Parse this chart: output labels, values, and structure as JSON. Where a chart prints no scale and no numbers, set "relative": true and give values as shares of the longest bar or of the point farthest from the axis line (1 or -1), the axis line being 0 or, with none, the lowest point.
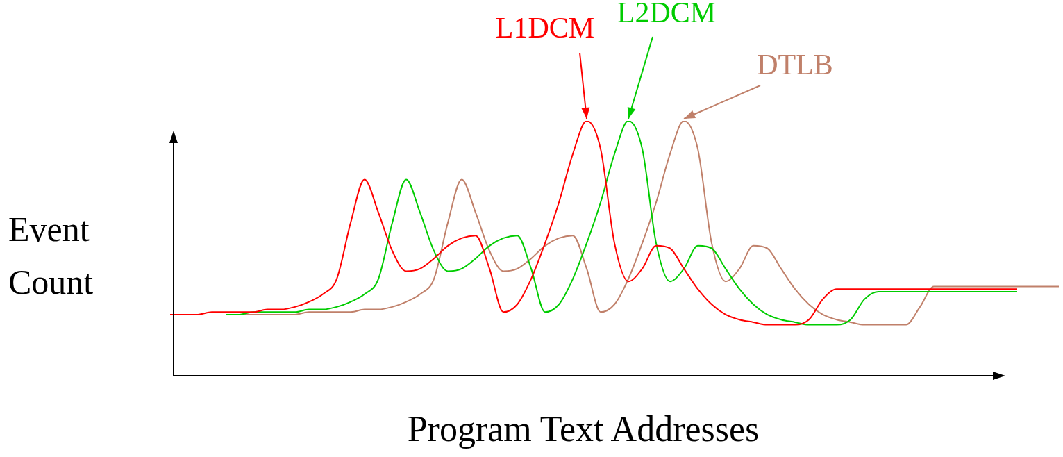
{
  "chart_data": {
    "type": "line",
    "relative": true,
    "xlabel": "Program Text Addresses",
    "ylabel": "Event Count",
    "legend": false,
    "marker": "none",
    "line_style": "solid",
    "categories": [
      null,
      null,
      null,
      null,
      null,
      null,
      null,
      null,
      null,
      null,
      null,
      null,
      null,
      null,
      null,
      null,
      null,
      null,
      null,
      null,
      null,
      null,
      null,
      null,
      null,
      null,
      null,
      null,
      null,
      null,
      null,
      null,
      null,
      null,
      null,
      null,
      null,
      null,
      null,
      null,
      null,
      null,
      null,
      null,
      null,
      null,
      null,
      null,
      null,
      null,
      null,
      null,
      null,
      null,
      null,
      null,
      null,
      null,
      null,
      null,
      null,
      null,
      null,
      null,
      null
    ],
    "series": [
      {
        "name": "L1DCM",
        "color": "#ff0000",
        "values": [
          0.24,
          0.24,
          0.24,
          0.25,
          0.25,
          0.25,
          0.25,
          0.26,
          0.26,
          0.27,
          0.29,
          0.32,
          0.38,
          0.6,
          0.77,
          0.64,
          0.49,
          0.41,
          0.42,
          0.46,
          0.51,
          0.54,
          0.55,
          0.42,
          0.25,
          0.28,
          0.38,
          0.52,
          0.68,
          0.87,
          1,
          0.89,
          0.52,
          0.37,
          0.42,
          0.51,
          0.5,
          0.42,
          0.34,
          0.28,
          0.24,
          0.22,
          0.21,
          0.2,
          0.2,
          0.2,
          0.22,
          0.3,
          0.34,
          0.34,
          0.34,
          0.34,
          0.34,
          0.34,
          0.34,
          0.34,
          0.34,
          0.34,
          0.34,
          0.34,
          0.34,
          0.34,
          null,
          null,
          null
        ]
      },
      {
        "name": "L2DCM",
        "color": "#00cc00",
        "values": [
          null,
          null,
          null,
          null,
          0.24,
          0.24,
          0.25,
          0.25,
          0.25,
          0.25,
          0.26,
          0.26,
          0.27,
          0.29,
          0.32,
          0.38,
          0.6,
          0.77,
          0.64,
          0.49,
          0.41,
          0.42,
          0.46,
          0.51,
          0.54,
          0.55,
          0.42,
          0.25,
          0.28,
          0.38,
          0.52,
          0.68,
          0.87,
          1,
          0.89,
          0.52,
          0.37,
          0.42,
          0.51,
          0.5,
          0.42,
          0.34,
          0.28,
          0.24,
          0.22,
          0.21,
          0.2,
          0.2,
          0.2,
          0.22,
          0.3,
          0.33,
          0.33,
          0.33,
          0.33,
          0.33,
          0.33,
          0.33,
          0.33,
          0.33,
          0.33,
          0.33,
          null,
          null,
          null
        ]
      },
      {
        "name": "DTLB",
        "color": "#c0806a",
        "values": [
          null,
          null,
          null,
          null,
          0.24,
          0.24,
          0.24,
          0.24,
          0.24,
          0.24,
          0.25,
          0.25,
          0.25,
          0.25,
          0.26,
          0.26,
          0.27,
          0.29,
          0.32,
          0.38,
          0.6,
          0.77,
          0.64,
          0.49,
          0.41,
          0.42,
          0.46,
          0.51,
          0.54,
          0.55,
          0.42,
          0.25,
          0.28,
          0.38,
          0.52,
          0.68,
          0.87,
          1,
          0.89,
          0.52,
          0.37,
          0.42,
          0.51,
          0.5,
          0.42,
          0.34,
          0.28,
          0.24,
          0.22,
          0.21,
          0.2,
          0.2,
          0.2,
          0.2,
          0.27,
          0.35,
          0.35,
          0.35,
          0.35,
          0.35,
          0.35,
          0.35,
          0.35,
          0.35,
          0.35
        ]
      }
    ]
  }
}
